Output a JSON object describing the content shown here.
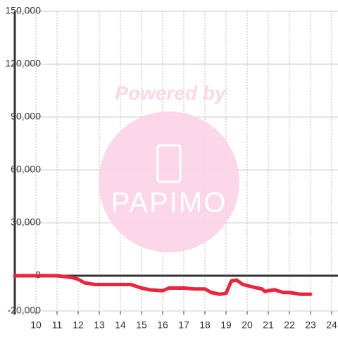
{
  "chart_data": {
    "type": "line",
    "annotations": [
      "Powered by",
      "PAPIMO"
    ],
    "x": [
      9,
      11.0,
      11.7,
      12.0,
      12.3,
      12.8,
      14.5,
      15.0,
      15.4,
      16.0,
      16.3,
      17.0,
      17.5,
      18.0,
      18.3,
      18.7,
      19.0,
      19.25,
      19.5,
      19.8,
      20.3,
      20.7,
      20.85,
      21.0,
      21.3,
      21.7,
      22.0,
      22.5,
      23.0
    ],
    "series": [
      {
        "color": "#e8273c",
        "values": [
          0,
          0,
          -1000,
          -2000,
          -4000,
          -5000,
          -5000,
          -7000,
          -8000,
          -8500,
          -7000,
          -7000,
          -7500,
          -7500,
          -9500,
          -10500,
          -10000,
          -3000,
          -2500,
          -5000,
          -6500,
          -7500,
          -9000,
          -8500,
          -8000,
          -9500,
          -9500,
          -10500,
          -10500
        ]
      }
    ],
    "xlim": [
      9,
      24.3
    ],
    "xticks": [
      10,
      11,
      12,
      13,
      14,
      15,
      16,
      17,
      18,
      19,
      20,
      21,
      22,
      23,
      24
    ],
    "ylim": [
      -20000,
      150000
    ],
    "yticks": [
      {
        "value": -20000,
        "label": "-20,000"
      },
      0,
      {
        "value": 30000,
        "label": "30,000"
      },
      {
        "value": 60000,
        "label": "60,000"
      },
      {
        "value": 90000,
        "label": "90,000"
      },
      {
        "value": 120000,
        "label": "120,000"
      },
      {
        "value": 150000,
        "label": "150,000"
      }
    ],
    "grid": true
  }
}
